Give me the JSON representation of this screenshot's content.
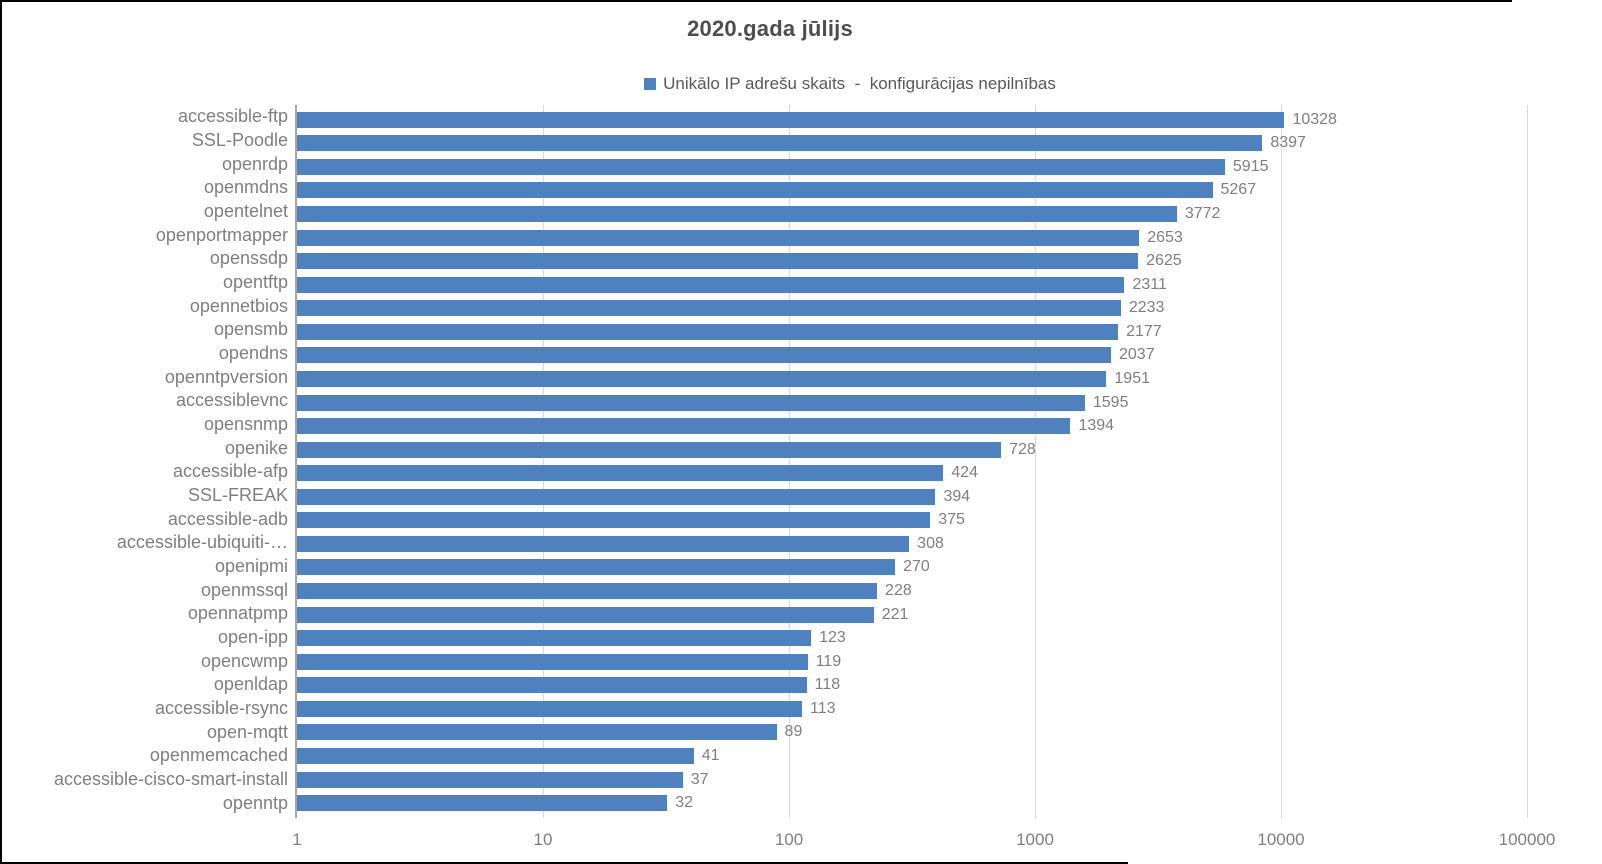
{
  "chart_data": {
    "type": "bar",
    "orientation": "horizontal",
    "title": "2020.gada jūlijs",
    "legend": "Unikālo IP adrešu skaits  -  konfigurācijas nepilnības",
    "series_name": "Unikālo IP adrešu skaits - konfigurācijas nepilnības",
    "x_scale": "log10",
    "xlim": [
      1,
      100000
    ],
    "x_ticks": [
      "1",
      "10",
      "100",
      "1000",
      "10000",
      "100000"
    ],
    "grid": "vertical-gridlines-per-decade",
    "legend_position": "top-center",
    "value_labels": "outside-end",
    "categories": [
      "accessible-ftp",
      "SSL-Poodle",
      "openrdp",
      "openmdns",
      "opentelnet",
      "openportmapper",
      "openssdp",
      "opentftp",
      "opennetbios",
      "opensmb",
      "opendns",
      "openntpversion",
      "accessiblevnc",
      "opensnmp",
      "openike",
      "accessible-afp",
      "SSL-FREAK",
      "accessible-adb",
      "accessible-ubiquiti-…",
      "openipmi",
      "openmssql",
      "opennatpmp",
      "open-ipp",
      "opencwmp",
      "openldap",
      "accessible-rsync",
      "open-mqtt",
      "openmemcached",
      "accessible-cisco-smart-install",
      "openntp"
    ],
    "values": [
      10328,
      8397,
      5915,
      5267,
      3772,
      2653,
      2625,
      2311,
      2233,
      2177,
      2037,
      1951,
      1595,
      1394,
      728,
      424,
      394,
      375,
      308,
      270,
      228,
      221,
      123,
      119,
      118,
      113,
      89,
      41,
      37,
      32
    ],
    "colors": {
      "bar": "#4E81BD",
      "title_text": "#4D4D4D",
      "legend_text": "#595959",
      "category_text": "#7F7F7F",
      "value_text": "#7F7F7F",
      "tick_text": "#7F7F7F",
      "gridline": "#D9D9D9",
      "axis_line": "#A6A6A6",
      "frame": "#000000",
      "background": "#FFFFFF"
    }
  }
}
